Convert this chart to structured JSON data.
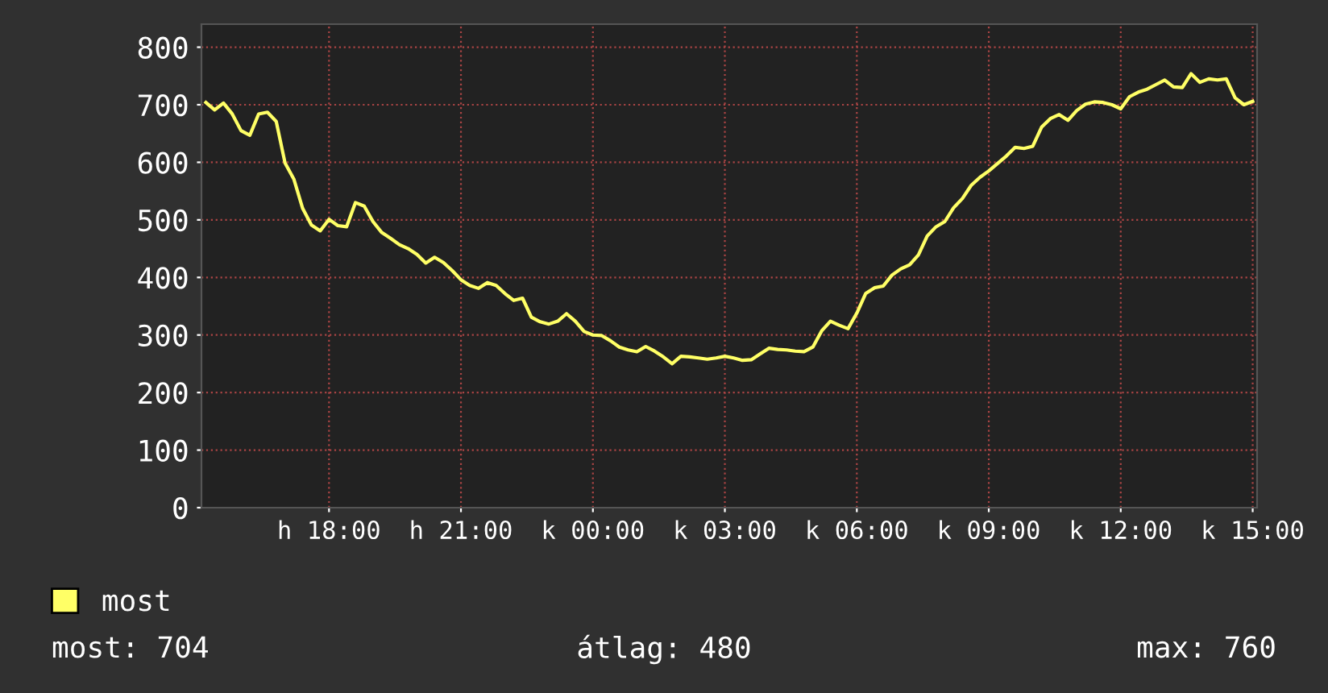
{
  "chart_data": {
    "type": "line",
    "categories": [
      null,
      null,
      null,
      null,
      null,
      null,
      null,
      null,
      null,
      null,
      null,
      null,
      null,
      null,
      "h 18:00",
      null,
      null,
      null,
      null,
      null,
      null,
      null,
      null,
      null,
      null,
      null,
      null,
      null,
      null,
      "h 21:00",
      null,
      null,
      null,
      null,
      null,
      null,
      null,
      null,
      null,
      null,
      null,
      null,
      null,
      null,
      "k 00:00",
      null,
      null,
      null,
      null,
      null,
      null,
      null,
      null,
      null,
      null,
      null,
      null,
      null,
      null,
      "k 03:00",
      null,
      null,
      null,
      null,
      null,
      null,
      null,
      null,
      null,
      null,
      null,
      null,
      null,
      null,
      "k 06:00",
      null,
      null,
      null,
      null,
      null,
      null,
      null,
      null,
      null,
      null,
      null,
      null,
      null,
      null,
      "k 09:00",
      null,
      null,
      null,
      null,
      null,
      null,
      null,
      null,
      null,
      null,
      null,
      null,
      null,
      null,
      "k 12:00",
      null,
      null,
      null,
      null,
      null,
      null,
      null,
      null,
      null,
      null,
      null,
      null,
      null,
      null,
      "k 15:00"
    ],
    "series": [
      {
        "name": "most",
        "color": "#ffff66",
        "values": [
          704,
          691,
          703,
          684,
          655,
          647,
          684,
          687,
          671,
          599,
          571,
          520,
          491,
          481,
          501,
          490,
          488,
          530,
          524,
          497,
          478,
          468,
          457,
          450,
          440,
          425,
          435,
          426,
          412,
          396,
          386,
          381,
          391,
          386,
          372,
          360,
          364,
          331,
          323,
          319,
          324,
          337,
          324,
          306,
          300,
          299,
          290,
          279,
          274,
          271,
          280,
          272,
          262,
          250,
          263,
          262,
          260,
          258,
          260,
          263,
          260,
          256,
          257,
          267,
          277,
          275,
          274,
          272,
          271,
          279,
          307,
          324,
          317,
          311,
          338,
          372,
          382,
          385,
          404,
          415,
          422,
          439,
          472,
          488,
          497,
          521,
          537,
          560,
          574,
          585,
          598,
          611,
          626,
          624,
          628,
          661,
          676,
          683,
          673,
          690,
          701,
          705,
          704,
          700,
          693,
          714,
          722,
          727,
          735,
          743,
          731,
          730,
          754,
          739,
          745,
          743,
          745,
          712,
          700,
          706
        ]
      }
    ],
    "ylim": [
      0,
      840
    ],
    "yticks": [
      0,
      100,
      200,
      300,
      400,
      500,
      600,
      700,
      800
    ],
    "grid": true,
    "legend": "bottom left",
    "annotations": [
      "most: 704",
      "átlag: 480",
      "max: 760"
    ]
  }
}
